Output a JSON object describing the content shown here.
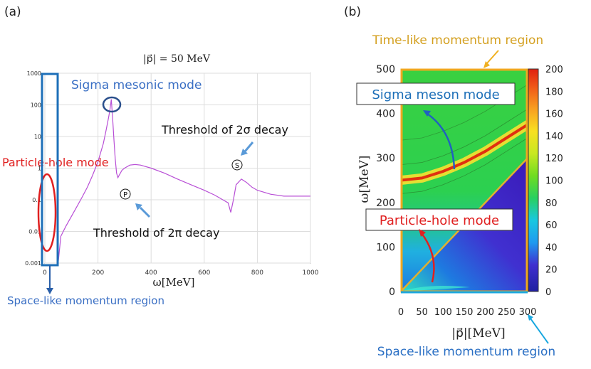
{
  "panel_a": {
    "label": "(a)",
    "title": "|p⃗| = 50 MeV",
    "xlabel": "ω[MeV]",
    "annotations": {
      "sigma_mode": "Sigma mesonic mode",
      "particle_hole": "Particle-hole mode",
      "threshold_sigma": "Threshold of 2σ decay",
      "threshold_pi": "Threshold of 2π decay",
      "marker_s": "S",
      "marker_p": "P",
      "space_like": "Space-like momentum region"
    }
  },
  "panel_b": {
    "label": "(b)",
    "xlabel": "|p⃗|[MeV]",
    "ylabel": "ω[MeV]",
    "annotations": {
      "time_like": "Time-like momentum region",
      "sigma_mode": "Sigma meson mode",
      "particle_hole": "Particle-hole mode",
      "space_like": "Space-like momentum region"
    }
  },
  "colors": {
    "curve": "#b84fd6",
    "sigma_text": "#3a6fc4",
    "ph_text": "#e02020",
    "blue_box": "#1d6fb8",
    "orange": "#f0a820",
    "cyan": "#1aa8e0"
  },
  "chart_data": [
    {
      "type": "line",
      "title": "|p⃗| = 50 MeV",
      "xlabel": "ω[MeV]",
      "ylabel": "",
      "xlim": [
        0,
        1000
      ],
      "ylim": [
        0.001,
        1000
      ],
      "yscale": "log",
      "x_ticks": [
        0,
        200,
        400,
        600,
        800,
        1000
      ],
      "y_ticks": [
        0.001,
        0.01,
        0.1,
        1,
        10,
        100,
        1000
      ],
      "y_tick_labels": [
        "0.001",
        "0.01",
        "0.1",
        "1",
        "10",
        "100",
        "1000"
      ],
      "grid": true,
      "series": [
        {
          "x": [
            50,
            60,
            80,
            100,
            120,
            140,
            160,
            180,
            200,
            220,
            230,
            240,
            245,
            250,
            255,
            260,
            265,
            270,
            275,
            280,
            290,
            300,
            320,
            340,
            360,
            400,
            450,
            500,
            550,
            600,
            640,
            670,
            690,
            700,
            710,
            720,
            740,
            760,
            780,
            800,
            850,
            900,
            950,
            1000
          ],
          "y": [
            0.001,
            0.007,
            0.015,
            0.03,
            0.06,
            0.12,
            0.25,
            0.6,
            1.6,
            6,
            15,
            40,
            70,
            150,
            40,
            8,
            2,
            0.7,
            0.5,
            0.6,
            0.85,
            1.0,
            1.25,
            1.3,
            1.25,
            1.0,
            0.7,
            0.45,
            0.3,
            0.2,
            0.14,
            0.1,
            0.08,
            0.04,
            0.1,
            0.3,
            0.45,
            0.35,
            0.25,
            0.2,
            0.15,
            0.13,
            0.13,
            0.13
          ]
        }
      ]
    },
    {
      "type": "heatmap",
      "xlabel": "|p⃗|[MeV]",
      "ylabel": "ω[MeV]",
      "xlim": [
        0,
        300
      ],
      "ylim": [
        0,
        500
      ],
      "x_ticks": [
        0,
        50,
        100,
        150,
        200,
        250,
        300
      ],
      "x_tick_labels": [
        "0",
        "50",
        "100",
        "150",
        "200",
        "250",
        "300"
      ],
      "y_ticks": [
        0,
        100,
        200,
        300,
        400,
        500
      ],
      "colorbar_ticks": [
        0,
        20,
        40,
        60,
        80,
        100,
        120,
        140,
        160,
        180,
        200
      ],
      "colorbar_range": [
        0,
        200
      ],
      "sigma_ridge": {
        "p": [
          0,
          50,
          100,
          150,
          200,
          250,
          300
        ],
        "omega": [
          250,
          255,
          270,
          290,
          315,
          345,
          375
        ]
      },
      "light_cone": {
        "p": [
          0,
          300
        ],
        "omega": [
          0,
          300
        ]
      }
    }
  ]
}
